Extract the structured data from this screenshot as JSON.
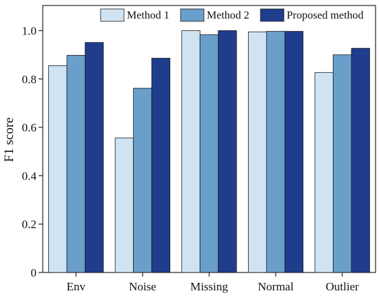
{
  "chart_data": {
    "type": "bar",
    "title": "",
    "xlabel": "",
    "ylabel": "F1 score",
    "ylim": [
      0,
      1.0
    ],
    "yticks": [
      0,
      0.2,
      0.4,
      0.6,
      0.8,
      1.0
    ],
    "ytick_labels": [
      "0",
      "0.2",
      "0.4",
      "0.6",
      "0.8",
      "1.0"
    ],
    "categories": [
      "Env",
      "Noise",
      "Missing",
      "Normal",
      "Outlier"
    ],
    "series": [
      {
        "name": "Method 1",
        "color": "#cfe3f3",
        "values": [
          0.855,
          0.556,
          1.0,
          0.995,
          0.827
        ]
      },
      {
        "name": "Method 2",
        "color": "#6a9fcb",
        "values": [
          0.898,
          0.762,
          0.983,
          0.997,
          0.9
        ]
      },
      {
        "name": "Proposed method",
        "color": "#1f3d8c",
        "values": [
          0.951,
          0.886,
          1.0,
          0.997,
          0.927
        ]
      }
    ],
    "grid": false,
    "legend": "top-right"
  }
}
